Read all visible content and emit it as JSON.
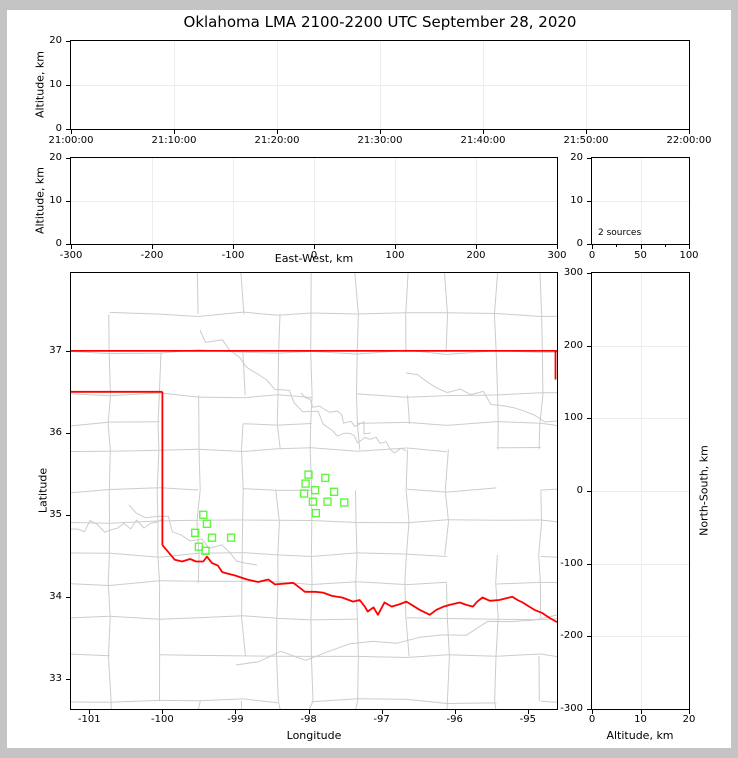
{
  "title": "Oklahoma LMA 2100-2200 UTC September 28, 2020",
  "colors": {
    "page_background": "#c4c4c4",
    "figure_background": "#ffffff",
    "frame": "#000000",
    "gridline": "#ededed",
    "county_lines": "#cccccc",
    "state_border": "#ff0000",
    "stations": "#62f441"
  },
  "chart_data": [
    {
      "id": "altitude_vs_time",
      "type": "scatter",
      "xlabel": "",
      "ylabel": "Altitude, km",
      "x_ticks": [
        "21:00:00",
        "21:10:00",
        "21:20:00",
        "21:30:00",
        "21:40:00",
        "21:50:00",
        "22:00:00"
      ],
      "ylim": [
        0,
        20
      ],
      "y_ticks": [
        0,
        10,
        20
      ],
      "grid": true,
      "points": []
    },
    {
      "id": "altitude_vs_eastwest",
      "type": "scatter",
      "xlabel": "East-West, km",
      "ylabel": "Altitude, km",
      "xlim": [
        -300,
        300
      ],
      "x_ticks": [
        -300,
        -200,
        -100,
        0,
        100,
        200,
        300
      ],
      "ylim": [
        0,
        20
      ],
      "y_ticks": [
        0,
        10,
        20
      ],
      "grid": true,
      "points": []
    },
    {
      "id": "altitude_histogram",
      "type": "line",
      "annotation": "2 sources",
      "xlabel": "",
      "ylabel": "",
      "xlim": [
        0,
        100
      ],
      "x_ticks": [
        0,
        50,
        100
      ],
      "x_minor_ticks": [
        25,
        75
      ],
      "ylim": [
        0,
        20
      ],
      "y_ticks": [
        0,
        10,
        20
      ],
      "grid": true,
      "points": []
    },
    {
      "id": "plan_view_map",
      "type": "scatter",
      "xlabel": "Longitude",
      "ylabel": "Latitude",
      "xlim": [
        -101.25,
        -94.6
      ],
      "x_ticks": [
        -101,
        -100,
        -99,
        -98,
        -97,
        -96,
        -95
      ],
      "ylim": [
        32.63,
        37.95
      ],
      "y_ticks": [
        33,
        34,
        35,
        36,
        37
      ],
      "grid": false,
      "points": [],
      "stations": [
        [
          -99.44,
          35.0
        ],
        [
          -99.39,
          34.89
        ],
        [
          -99.55,
          34.78
        ],
        [
          -99.32,
          34.72
        ],
        [
          -99.06,
          34.72
        ],
        [
          -99.5,
          34.61
        ],
        [
          -99.41,
          34.56
        ],
        [
          -98.0,
          35.49
        ],
        [
          -97.77,
          35.45
        ],
        [
          -98.04,
          35.38
        ],
        [
          -97.91,
          35.3
        ],
        [
          -98.06,
          35.26
        ],
        [
          -97.65,
          35.28
        ],
        [
          -97.94,
          35.16
        ],
        [
          -97.74,
          35.16
        ],
        [
          -97.51,
          35.15
        ],
        [
          -97.9,
          35.02
        ]
      ],
      "state_border": {
        "north": [
          [
            -101.25,
            37.0
          ],
          [
            -94.6,
            37.0
          ]
        ],
        "panhandle_south": [
          [
            -101.25,
            36.5
          ],
          [
            -100.0,
            36.5
          ]
        ],
        "west": [
          [
            -100.0,
            36.5
          ],
          [
            -100.0,
            34.63
          ]
        ],
        "east": [
          [
            -94.62,
            37.0
          ],
          [
            -94.62,
            36.65
          ]
        ],
        "red_river": [
          [
            -100.0,
            34.63
          ],
          [
            -99.83,
            34.45
          ],
          [
            -99.73,
            34.43
          ],
          [
            -99.62,
            34.46
          ],
          [
            -99.54,
            34.43
          ],
          [
            -99.44,
            34.43
          ],
          [
            -99.39,
            34.49
          ],
          [
            -99.32,
            34.41
          ],
          [
            -99.24,
            34.38
          ],
          [
            -99.18,
            34.3
          ],
          [
            -99.1,
            34.28
          ],
          [
            -99.01,
            34.26
          ],
          [
            -98.84,
            34.21
          ],
          [
            -98.69,
            34.18
          ],
          [
            -98.55,
            34.21
          ],
          [
            -98.46,
            34.15
          ],
          [
            -98.32,
            34.16
          ],
          [
            -98.21,
            34.17
          ],
          [
            -98.12,
            34.11
          ],
          [
            -98.05,
            34.06
          ],
          [
            -97.91,
            34.06
          ],
          [
            -97.8,
            34.05
          ],
          [
            -97.68,
            34.01
          ],
          [
            -97.54,
            33.99
          ],
          [
            -97.39,
            33.94
          ],
          [
            -97.3,
            33.96
          ],
          [
            -97.23,
            33.88
          ],
          [
            -97.19,
            33.82
          ],
          [
            -97.11,
            33.87
          ],
          [
            -97.05,
            33.78
          ],
          [
            -96.96,
            33.93
          ],
          [
            -96.86,
            33.88
          ],
          [
            -96.75,
            33.91
          ],
          [
            -96.66,
            33.94
          ],
          [
            -96.57,
            33.89
          ],
          [
            -96.48,
            33.84
          ],
          [
            -96.34,
            33.78
          ],
          [
            -96.25,
            33.84
          ],
          [
            -96.15,
            33.88
          ],
          [
            -96.07,
            33.9
          ],
          [
            -95.93,
            33.93
          ],
          [
            -95.84,
            33.9
          ],
          [
            -95.75,
            33.88
          ],
          [
            -95.69,
            33.94
          ],
          [
            -95.62,
            33.99
          ],
          [
            -95.52,
            33.95
          ],
          [
            -95.39,
            33.96
          ],
          [
            -95.3,
            33.98
          ],
          [
            -95.21,
            34.0
          ],
          [
            -95.14,
            33.96
          ],
          [
            -95.07,
            33.93
          ],
          [
            -94.98,
            33.88
          ],
          [
            -94.91,
            33.84
          ],
          [
            -94.8,
            33.8
          ],
          [
            -94.7,
            33.74
          ],
          [
            -94.6,
            33.69
          ]
        ]
      }
    },
    {
      "id": "northsouth_vs_altitude",
      "type": "scatter",
      "xlabel": "Altitude, km",
      "ylabel": "North-South, km",
      "xlim": [
        0,
        20
      ],
      "x_ticks": [
        0,
        10,
        20
      ],
      "ylim": [
        -300,
        300
      ],
      "y_ticks": [
        -300,
        -200,
        -100,
        0,
        100,
        200,
        300
      ],
      "grid": true,
      "points": []
    }
  ]
}
